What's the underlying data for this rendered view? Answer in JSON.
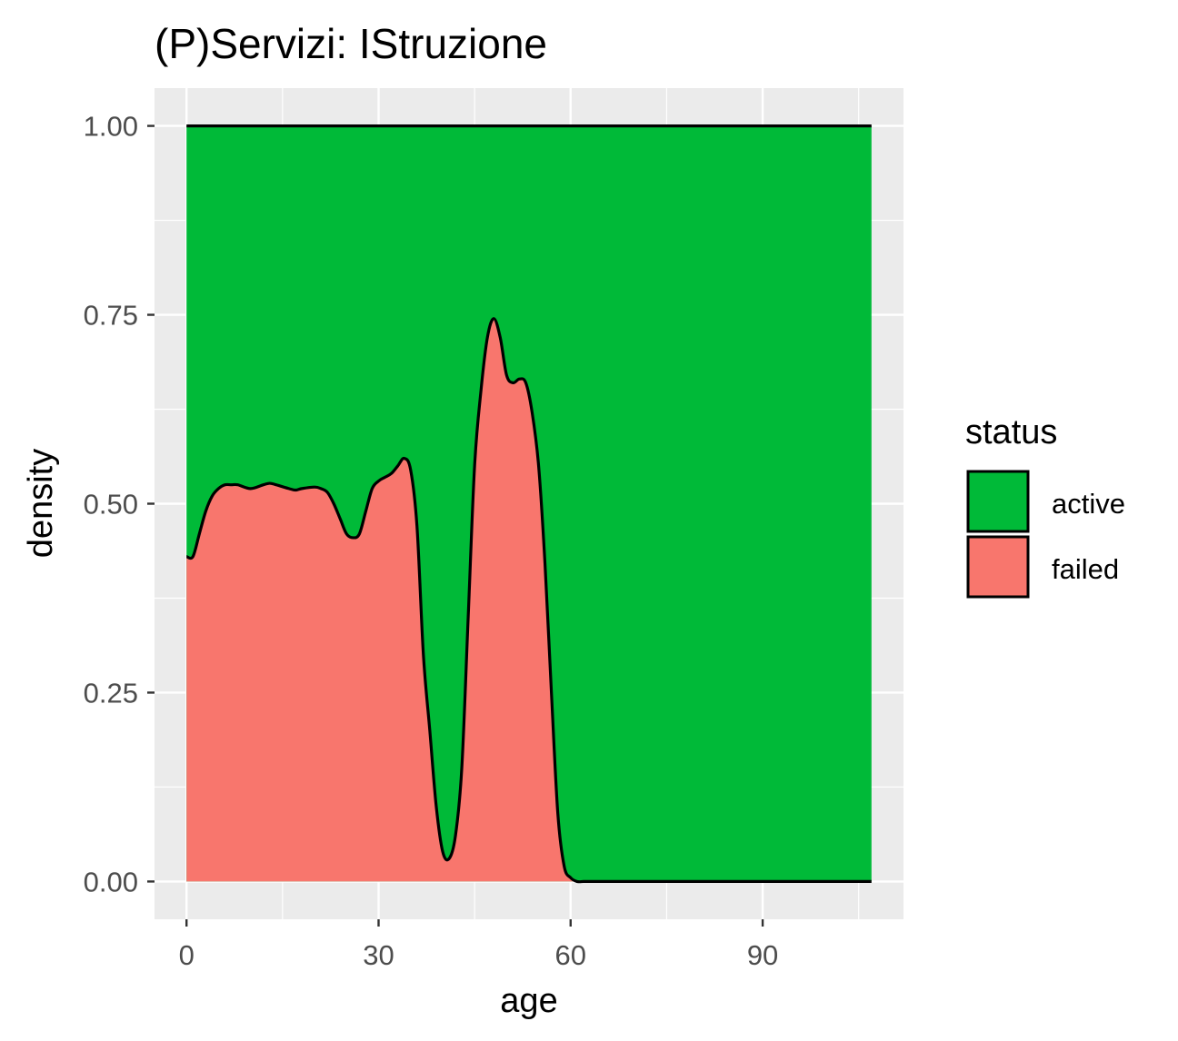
{
  "chart_data": {
    "type": "area",
    "subtype": "stacked-filled-density",
    "title": "(P)Servizi: IStruzione",
    "xlabel": "age",
    "ylabel": "density",
    "xlim": [
      -5,
      112
    ],
    "ylim": [
      -0.05,
      1.05
    ],
    "x_ticks": [
      0,
      30,
      60,
      90
    ],
    "x_tick_labels": [
      "0",
      "30",
      "60",
      "90"
    ],
    "y_ticks": [
      0,
      0.25,
      0.5,
      0.75,
      1
    ],
    "y_tick_labels": [
      "0.00",
      "0.25",
      "0.50",
      "0.75",
      "1.00"
    ],
    "grid": true,
    "legend": {
      "title": "status",
      "position": "right",
      "entries": [
        "active",
        "failed"
      ]
    },
    "colors": {
      "active": "#00BA38",
      "failed": "#F8766D",
      "panel": "#EBEBEB",
      "grid": "#FFFFFF",
      "outline": "#000000"
    },
    "x_range": [
      0,
      107
    ],
    "series": [
      {
        "name": "failed",
        "x": [
          0,
          1,
          2,
          3,
          4,
          5,
          6,
          7,
          8,
          10,
          12,
          13,
          14,
          16,
          17,
          18,
          20,
          21,
          22,
          23,
          24,
          25,
          26,
          27,
          28,
          29,
          30,
          31,
          32,
          33,
          34,
          35,
          36,
          37,
          38,
          39,
          40,
          41,
          42,
          43,
          44,
          45,
          46,
          47,
          48,
          49,
          50,
          51,
          52,
          53,
          54,
          55,
          56,
          57,
          58,
          59,
          60,
          61,
          62,
          63,
          65,
          70,
          80,
          90,
          100,
          107
        ],
        "values": [
          0.43,
          0.43,
          0.46,
          0.49,
          0.51,
          0.52,
          0.525,
          0.525,
          0.525,
          0.52,
          0.525,
          0.527,
          0.525,
          0.52,
          0.518,
          0.52,
          0.522,
          0.52,
          0.515,
          0.5,
          0.48,
          0.46,
          0.455,
          0.46,
          0.49,
          0.52,
          0.53,
          0.535,
          0.54,
          0.55,
          0.56,
          0.545,
          0.47,
          0.3,
          0.2,
          0.1,
          0.04,
          0.03,
          0.06,
          0.15,
          0.35,
          0.55,
          0.65,
          0.72,
          0.745,
          0.72,
          0.67,
          0.66,
          0.665,
          0.66,
          0.62,
          0.55,
          0.42,
          0.25,
          0.09,
          0.02,
          0.005,
          0.0,
          0.0,
          0.0,
          0.0,
          0.0,
          0.0,
          0.0,
          0.0,
          0.0
        ]
      },
      {
        "name": "active",
        "note_stacked_top": 1.0
      }
    ]
  }
}
